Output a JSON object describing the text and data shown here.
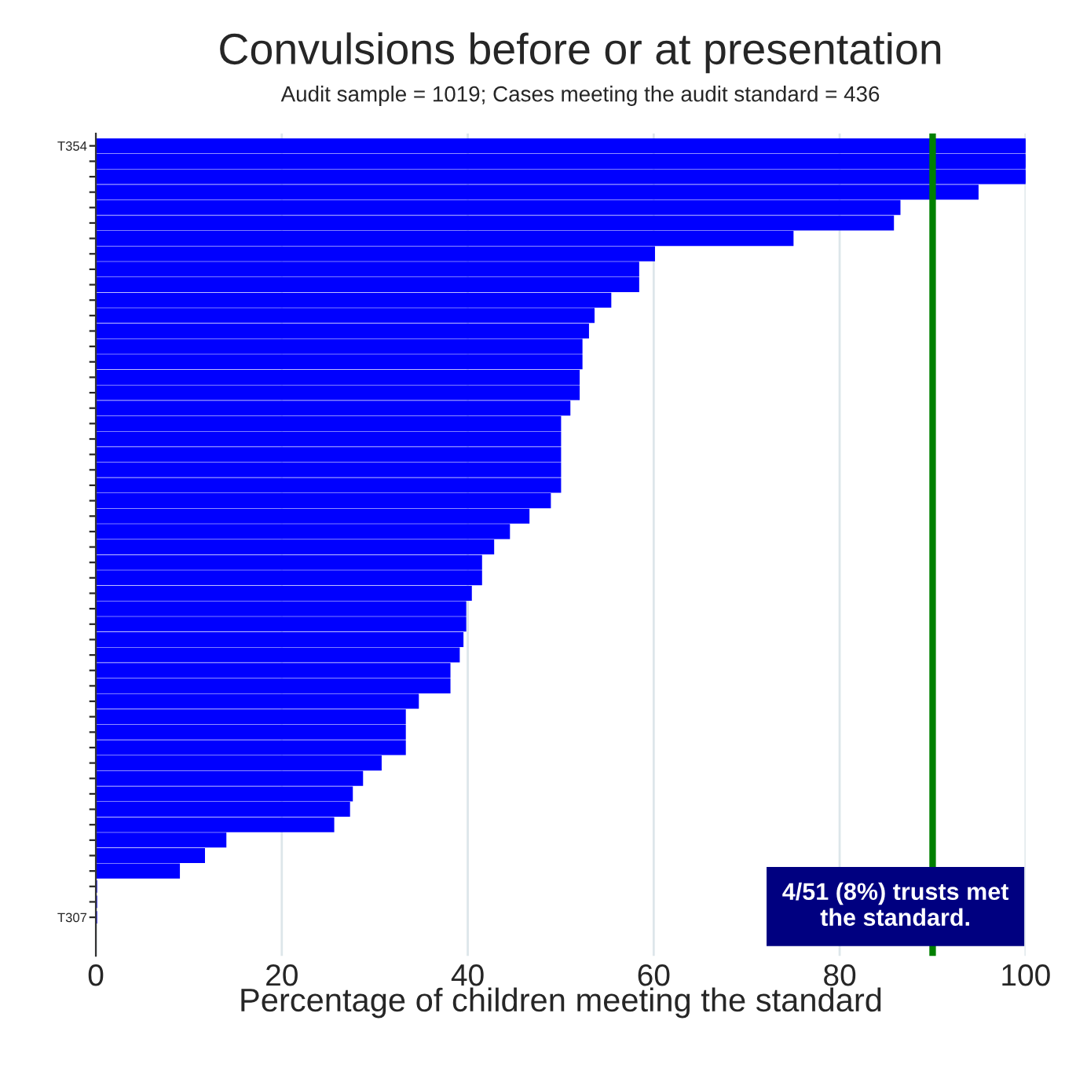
{
  "chart_data": {
    "type": "bar",
    "orientation": "horizontal",
    "title": "Convulsions before or at presentation",
    "subtitle": "Audit sample = 1019; Cases meeting the audit standard = 436",
    "xlabel": "Percentage of children meeting the standard",
    "categories": [
      "T354",
      null,
      null,
      null,
      null,
      null,
      null,
      null,
      null,
      null,
      null,
      null,
      null,
      null,
      null,
      null,
      null,
      null,
      null,
      null,
      null,
      null,
      null,
      null,
      null,
      null,
      null,
      null,
      null,
      null,
      null,
      null,
      null,
      null,
      null,
      null,
      null,
      null,
      null,
      null,
      null,
      null,
      null,
      null,
      null,
      null,
      null,
      null,
      null,
      null,
      "T307"
    ],
    "values": [
      100,
      100,
      100,
      94.8,
      86.4,
      85.7,
      74.9,
      60.0,
      58.3,
      58.3,
      55.3,
      53.5,
      52.9,
      52.2,
      52.2,
      51.9,
      51.9,
      50.9,
      49.9,
      49.9,
      49.9,
      49.9,
      49.9,
      48.8,
      46.5,
      44.4,
      42.7,
      41.4,
      41.4,
      40.3,
      39.7,
      39.7,
      39.4,
      39.0,
      38.0,
      38.0,
      34.6,
      33.2,
      33.2,
      33.2,
      30.6,
      28.6,
      27.5,
      27.2,
      25.5,
      13.9,
      11.6,
      8.9,
      0,
      0,
      0
    ],
    "color": "#0000ff",
    "xlim": [
      0,
      100
    ],
    "xticks": [
      0,
      20,
      40,
      60,
      80,
      100
    ],
    "grid": "x",
    "ref_lines": [
      {
        "axis": "x",
        "value": 90,
        "color": "#008000"
      }
    ],
    "annotations": [
      "4/51 (8%) trusts met\nthe standard."
    ]
  }
}
